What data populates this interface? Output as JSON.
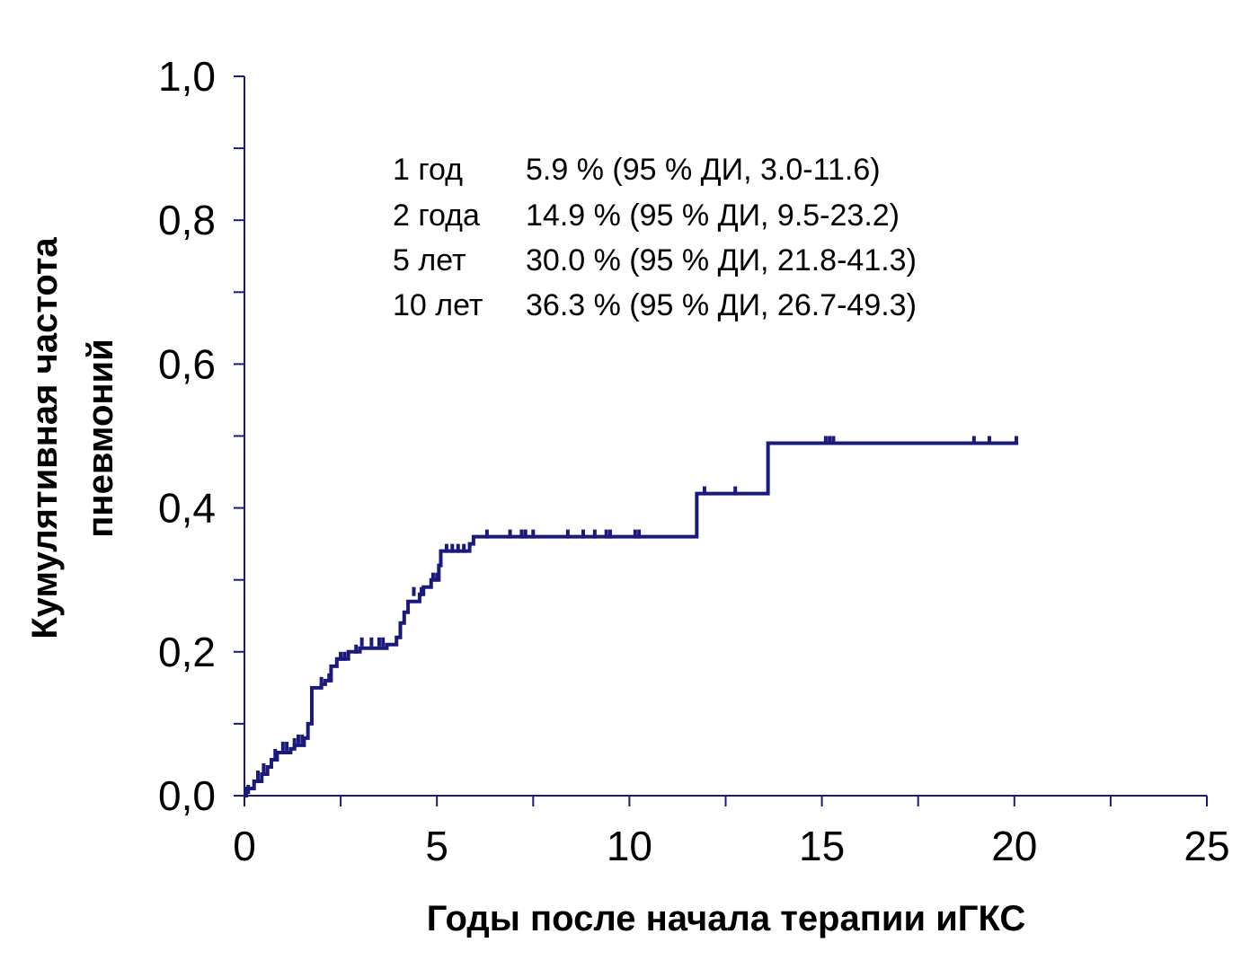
{
  "chart_data": {
    "type": "line",
    "subtype": "step",
    "xlabel": "Годы после начала терапии иГКС",
    "ylabel_lines": [
      "Кумулятивная частота",
      "пневмоний"
    ],
    "xlim": [
      0,
      25
    ],
    "ylim": [
      0,
      1.0
    ],
    "x_ticks": [
      0,
      5,
      10,
      15,
      20,
      25
    ],
    "x_tick_labels": [
      "0",
      "5",
      "10",
      "15",
      "20",
      "25"
    ],
    "y_ticks": [
      0,
      0.2,
      0.4,
      0.6,
      0.8,
      1.0
    ],
    "y_tick_labels": [
      "0,0",
      "0,2",
      "0,4",
      "0,6",
      "0,8",
      "1,0"
    ],
    "grid": false,
    "color": "#1a1a7a",
    "series": [
      {
        "steps": [
          [
            0.0,
            0.0
          ],
          [
            0.05,
            0.01
          ],
          [
            0.25,
            0.02
          ],
          [
            0.45,
            0.03
          ],
          [
            0.6,
            0.04
          ],
          [
            0.7,
            0.05
          ],
          [
            0.85,
            0.06
          ],
          [
            1.2,
            0.065
          ],
          [
            1.3,
            0.07
          ],
          [
            1.55,
            0.08
          ],
          [
            1.65,
            0.1
          ],
          [
            1.75,
            0.15
          ],
          [
            2.0,
            0.155
          ],
          [
            2.1,
            0.16
          ],
          [
            2.25,
            0.18
          ],
          [
            2.4,
            0.19
          ],
          [
            2.7,
            0.2
          ],
          [
            3.0,
            0.205
          ],
          [
            3.7,
            0.21
          ],
          [
            3.95,
            0.22
          ],
          [
            4.05,
            0.24
          ],
          [
            4.15,
            0.255
          ],
          [
            4.25,
            0.27
          ],
          [
            4.55,
            0.28
          ],
          [
            4.65,
            0.29
          ],
          [
            4.85,
            0.3
          ],
          [
            5.05,
            0.32
          ],
          [
            5.1,
            0.34
          ],
          [
            5.85,
            0.35
          ],
          [
            5.95,
            0.36
          ],
          [
            11.75,
            0.42
          ],
          [
            13.6,
            0.49
          ],
          [
            20.1,
            0.49
          ]
        ],
        "censor_marks": [
          [
            0.1,
            0.005
          ],
          [
            0.35,
            0.025
          ],
          [
            0.5,
            0.035
          ],
          [
            0.8,
            0.055
          ],
          [
            1.0,
            0.065
          ],
          [
            1.1,
            0.065
          ],
          [
            1.3,
            0.07
          ],
          [
            1.4,
            0.075
          ],
          [
            1.5,
            0.075
          ],
          [
            2.0,
            0.155
          ],
          [
            2.2,
            0.16
          ],
          [
            2.5,
            0.19
          ],
          [
            2.6,
            0.19
          ],
          [
            2.9,
            0.2
          ],
          [
            3.05,
            0.21
          ],
          [
            3.3,
            0.21
          ],
          [
            3.5,
            0.21
          ],
          [
            3.6,
            0.21
          ],
          [
            4.4,
            0.28
          ],
          [
            4.6,
            0.28
          ],
          [
            4.9,
            0.3
          ],
          [
            5.0,
            0.3
          ],
          [
            5.25,
            0.34
          ],
          [
            5.4,
            0.34
          ],
          [
            5.55,
            0.34
          ],
          [
            5.7,
            0.34
          ],
          [
            6.3,
            0.36
          ],
          [
            6.9,
            0.36
          ],
          [
            7.2,
            0.36
          ],
          [
            7.3,
            0.36
          ],
          [
            7.5,
            0.36
          ],
          [
            8.4,
            0.36
          ],
          [
            8.8,
            0.36
          ],
          [
            9.1,
            0.36
          ],
          [
            9.4,
            0.36
          ],
          [
            9.5,
            0.36
          ],
          [
            10.15,
            0.36
          ],
          [
            10.25,
            0.36
          ],
          [
            11.95,
            0.42
          ],
          [
            12.75,
            0.42
          ],
          [
            15.1,
            0.49
          ],
          [
            15.2,
            0.49
          ],
          [
            15.3,
            0.49
          ],
          [
            18.95,
            0.49
          ],
          [
            19.35,
            0.49
          ],
          [
            20.05,
            0.49
          ]
        ]
      }
    ],
    "annotations": [
      {
        "period": "1 год",
        "value": "5.9 % (95 % ДИ, 3.0-11.6)"
      },
      {
        "period": "2 года",
        "value": "14.9 % (95 % ДИ, 9.5-23.2)"
      },
      {
        "period": "5 лет",
        "value": "30.0 % (95 % ДИ, 21.8-41.3)"
      },
      {
        "period": "10 лет",
        "value": "36.3 % (95 % ДИ, 26.7-49.3)"
      }
    ]
  }
}
